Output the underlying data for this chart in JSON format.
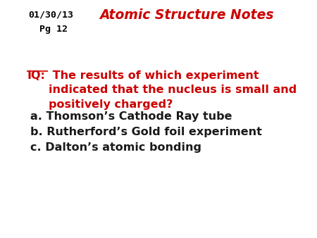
{
  "bg_color": "#ffffff",
  "date_line1": "01/30/13",
  "date_line2": "  Pg 12",
  "title_text": "Atomic Structure Notes",
  "title_color": "#cc0000",
  "date_color": "#000000",
  "iq_label": "IQ:",
  "iq_rest": " The results of which experiment\nindicated that the nucleus is small and\npositively charged?",
  "iq_color": "#cc0000",
  "answer_a": "a. Thomson’s Cathode Ray tube",
  "answer_b": "b. Rutherford’s Gold foil experiment",
  "answer_c": "c. Dalton’s atomic bonding",
  "answer_color": "#1a1a1a",
  "title_fontsize": 13.5,
  "date_fontsize": 9.5,
  "iq_fontsize": 11.5,
  "answer_fontsize": 11.5
}
